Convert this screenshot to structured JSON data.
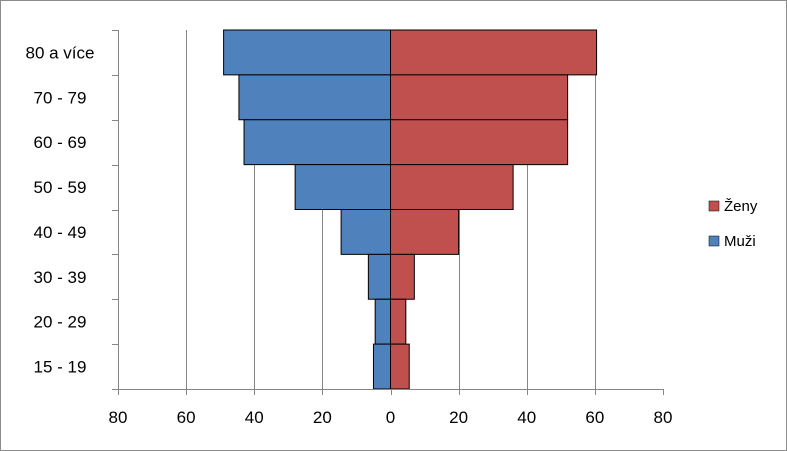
{
  "chart_data": {
    "type": "bar",
    "orientation": "horizontal",
    "subtype": "population-pyramid",
    "categories": [
      "80 a více",
      "70 - 79",
      "60 - 69",
      "50 - 59",
      "40 - 49",
      "30 - 39",
      "20 - 29",
      "15 - 19"
    ],
    "series": [
      {
        "name": "Ženy",
        "color": "#c0504d",
        "side": "right",
        "values": [
          60.5,
          52,
          52,
          36,
          20,
          7,
          4.5,
          5.5
        ]
      },
      {
        "name": "Muži",
        "color": "#4f81bd",
        "side": "left",
        "values": [
          49,
          44.5,
          43,
          28,
          14.5,
          6.5,
          4.5,
          5
        ]
      }
    ],
    "xlim": [
      -80,
      80
    ],
    "x_tick_values": [
      -80,
      -60,
      -40,
      -20,
      0,
      20,
      40,
      60,
      80
    ],
    "x_tick_labels": [
      "80",
      "60",
      "40",
      "20",
      "0",
      "20",
      "40",
      "60",
      "80"
    ],
    "grid": "vertical",
    "legend_position": "right",
    "title": "",
    "xlabel": "",
    "ylabel": ""
  }
}
